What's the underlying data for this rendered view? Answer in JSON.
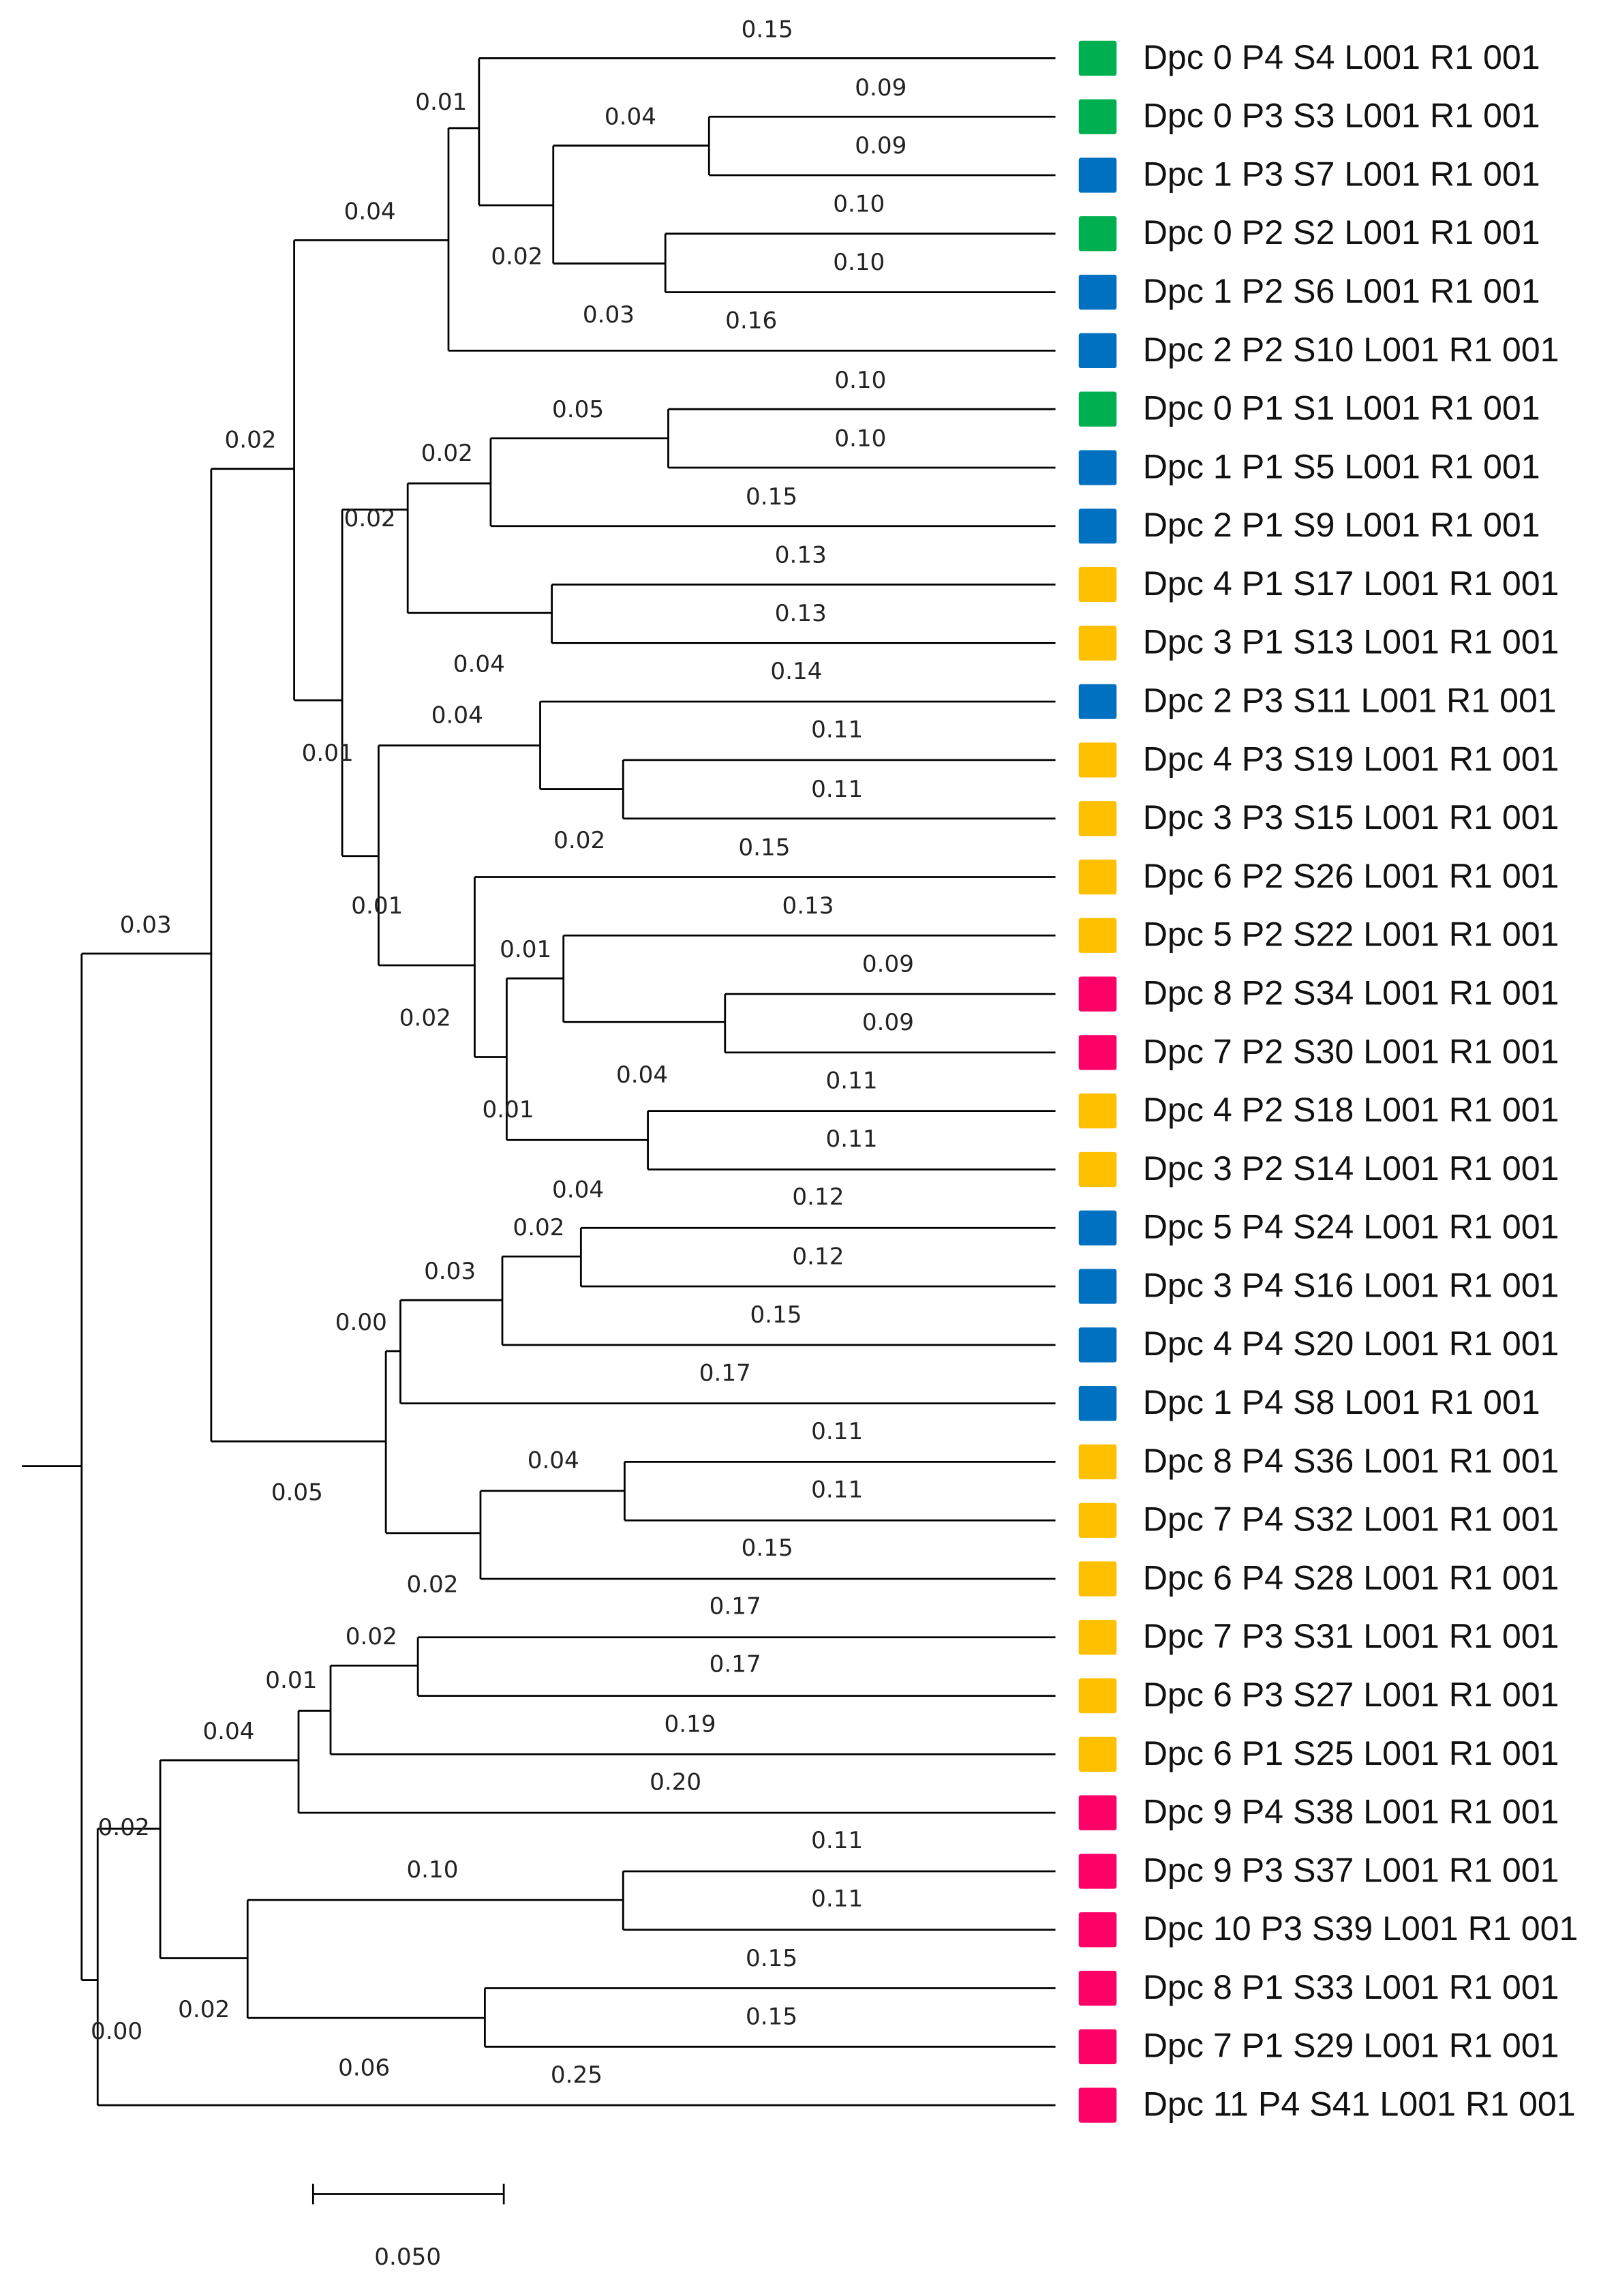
{
  "colors": {
    "green": "#00b050",
    "blue": "#0070c0",
    "yellow": "#ffc000",
    "pink": "#ff0066"
  },
  "leaves": [
    {
      "label": "Dpc 0 P4 S4 L001 R1 001",
      "group": "green"
    },
    {
      "label": "Dpc 0 P3 S3 L001 R1 001",
      "group": "green"
    },
    {
      "label": "Dpc 1 P3 S7 L001 R1 001",
      "group": "blue"
    },
    {
      "label": "Dpc 0 P2 S2 L001 R1 001",
      "group": "green"
    },
    {
      "label": "Dpc 1 P2 S6 L001 R1 001",
      "group": "blue"
    },
    {
      "label": "Dpc 2 P2 S10 L001 R1 001",
      "group": "blue"
    },
    {
      "label": "Dpc 0 P1 S1 L001 R1 001",
      "group": "green"
    },
    {
      "label": "Dpc 1 P1 S5 L001 R1 001",
      "group": "blue"
    },
    {
      "label": "Dpc 2 P1 S9 L001 R1 001",
      "group": "blue"
    },
    {
      "label": "Dpc 4 P1 S17 L001 R1 001",
      "group": "yellow"
    },
    {
      "label": "Dpc 3 P1 S13 L001 R1 001",
      "group": "yellow"
    },
    {
      "label": "Dpc 2 P3 S11 L001 R1 001",
      "group": "blue"
    },
    {
      "label": "Dpc 4 P3 S19 L001 R1 001",
      "group": "yellow"
    },
    {
      "label": "Dpc 3 P3 S15 L001 R1 001",
      "group": "yellow"
    },
    {
      "label": "Dpc 6 P2 S26 L001 R1 001",
      "group": "yellow"
    },
    {
      "label": "Dpc 5 P2 S22 L001 R1 001",
      "group": "yellow"
    },
    {
      "label": "Dpc 8 P2 S34 L001 R1 001",
      "group": "pink"
    },
    {
      "label": "Dpc 7 P2 S30 L001 R1 001",
      "group": "pink"
    },
    {
      "label": "Dpc 4 P2 S18 L001 R1 001",
      "group": "yellow"
    },
    {
      "label": "Dpc 3 P2 S14 L001 R1 001",
      "group": "yellow"
    },
    {
      "label": "Dpc 5 P4 S24 L001 R1 001",
      "group": "blue"
    },
    {
      "label": "Dpc 3 P4 S16 L001 R1 001",
      "group": "blue"
    },
    {
      "label": "Dpc 4 P4 S20 L001 R1 001",
      "group": "blue"
    },
    {
      "label": "Dpc 1 P4 S8 L001 R1 001",
      "group": "blue"
    },
    {
      "label": "Dpc 8 P4 S36 L001 R1 001",
      "group": "yellow"
    },
    {
      "label": "Dpc 7 P4 S32 L001 R1 001",
      "group": "yellow"
    },
    {
      "label": "Dpc 6 P4 S28 L001 R1 001",
      "group": "yellow"
    },
    {
      "label": "Dpc 7 P3 S31 L001 R1 001",
      "group": "yellow"
    },
    {
      "label": "Dpc 6 P3 S27 L001 R1 001",
      "group": "yellow"
    },
    {
      "label": "Dpc 6 P1 S25 L001 R1 001",
      "group": "yellow"
    },
    {
      "label": "Dpc 9 P4 S38 L001 R1 001",
      "group": "pink"
    },
    {
      "label": "Dpc 9 P3 S37 L001 R1 001",
      "group": "pink"
    },
    {
      "label": "Dpc 10 P3 S39 L001 R1 001",
      "group": "pink"
    },
    {
      "label": "Dpc 8 P1 S33 L001 R1 001",
      "group": "pink"
    },
    {
      "label": "Dpc 7 P1 S29 L001 R1 001",
      "group": "pink"
    },
    {
      "label": "Dpc 11 P4 S41 L001 R1 001",
      "group": "pink"
    }
  ],
  "branch_lengths": [
    "0.15",
    "0.01",
    "0.09",
    "0.04",
    "0.09",
    "0.04",
    "0.10",
    "0.02",
    "0.10",
    "0.03",
    "0.16",
    "0.10",
    "0.05",
    "0.02",
    "0.10",
    "0.02",
    "0.15",
    "0.02",
    "0.13",
    "0.13",
    "0.04",
    "0.14",
    "0.04",
    "0.11",
    "0.01",
    "0.11",
    "0.02",
    "0.15",
    "0.01",
    "0.13",
    "0.03",
    "0.01",
    "0.09",
    "0.02",
    "0.09",
    "0.04",
    "0.11",
    "0.01",
    "0.11",
    "0.04",
    "0.12",
    "0.02",
    "0.12",
    "0.03",
    "0.15",
    "0.00",
    "0.17",
    "0.11",
    "0.04",
    "0.11",
    "0.05",
    "0.15",
    "0.02",
    "0.17",
    "0.02",
    "0.17",
    "0.01",
    "0.19",
    "0.04",
    "0.20",
    "0.02",
    "0.11",
    "0.10",
    "0.11",
    "0.15",
    "0.02",
    "0.15",
    "0.00",
    "0.06",
    "0.25"
  ],
  "scale_bar": {
    "value": "0.050"
  }
}
